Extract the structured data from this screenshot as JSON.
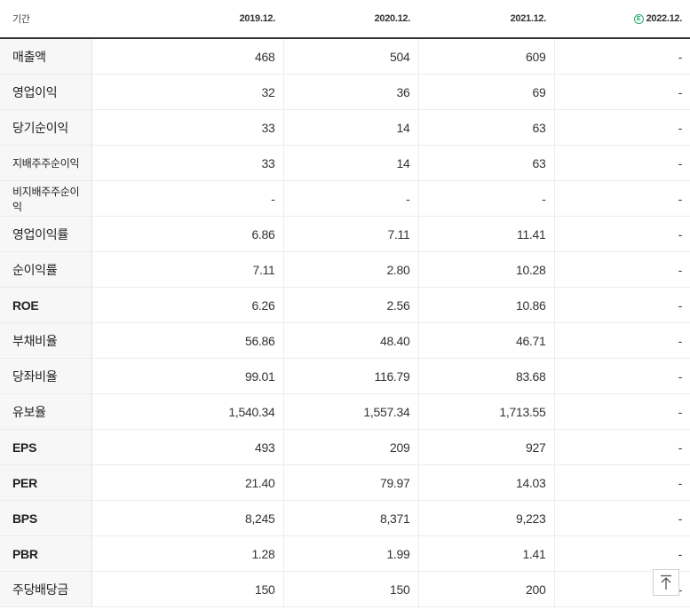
{
  "header": {
    "label": "기간",
    "periods": [
      "2019.12.",
      "2020.12.",
      "2021.12.",
      "2022.12."
    ],
    "estimate_badge": "E"
  },
  "rows": [
    {
      "label": "매출액",
      "values": [
        "468",
        "504",
        "609",
        "-"
      ]
    },
    {
      "label": "영업이익",
      "values": [
        "32",
        "36",
        "69",
        "-"
      ]
    },
    {
      "label": "당기순이익",
      "values": [
        "33",
        "14",
        "63",
        "-"
      ]
    },
    {
      "label": "지배주주순이익",
      "values": [
        "33",
        "14",
        "63",
        "-"
      ]
    },
    {
      "label": "비지배주주순이익",
      "values": [
        "-",
        "-",
        "-",
        "-"
      ]
    },
    {
      "label": "영업이익률",
      "values": [
        "6.86",
        "7.11",
        "11.41",
        "-"
      ]
    },
    {
      "label": "순이익률",
      "values": [
        "7.11",
        "2.80",
        "10.28",
        "-"
      ]
    },
    {
      "label": "ROE",
      "values": [
        "6.26",
        "2.56",
        "10.86",
        "-"
      ]
    },
    {
      "label": "부채비율",
      "values": [
        "56.86",
        "48.40",
        "46.71",
        "-"
      ]
    },
    {
      "label": "당좌비율",
      "values": [
        "99.01",
        "116.79",
        "83.68",
        "-"
      ]
    },
    {
      "label": "유보율",
      "values": [
        "1,540.34",
        "1,557.34",
        "1,713.55",
        "-"
      ]
    },
    {
      "label": "EPS",
      "values": [
        "493",
        "209",
        "927",
        "-"
      ]
    },
    {
      "label": "PER",
      "values": [
        "21.40",
        "79.97",
        "14.03",
        "-"
      ]
    },
    {
      "label": "BPS",
      "values": [
        "8,245",
        "8,371",
        "9,223",
        "-"
      ]
    },
    {
      "label": "PBR",
      "values": [
        "1.28",
        "1.99",
        "1.41",
        "-"
      ]
    },
    {
      "label": "주당배당금",
      "values": [
        "150",
        "150",
        "200",
        "-"
      ]
    }
  ],
  "scroll_top": {
    "icon": "arrow-up-icon"
  }
}
